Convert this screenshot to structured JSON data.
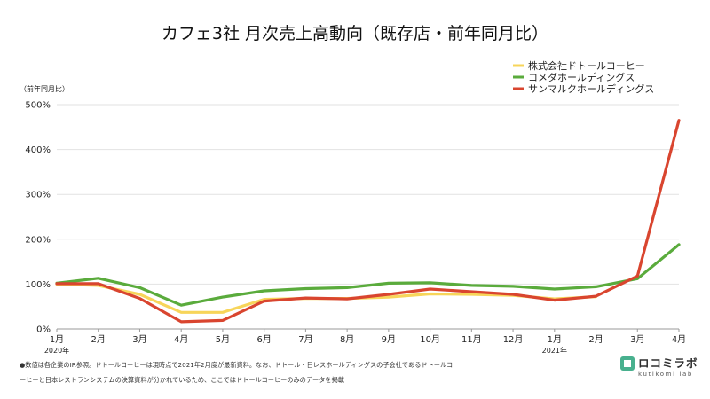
{
  "chart_data": {
    "type": "line",
    "title": "カフェ3社 月次売上高動向（既存店・前年同月比）",
    "ylabel": "（前年同月比）",
    "categories": [
      "1月",
      "2月",
      "3月",
      "4月",
      "5月",
      "6月",
      "7月",
      "8月",
      "9月",
      "10月",
      "11月",
      "12月",
      "1月",
      "2月",
      "3月",
      "4月"
    ],
    "year_labels": [
      {
        "index": 0,
        "label": "2020年"
      },
      {
        "index": 12,
        "label": "2021年"
      }
    ],
    "ylim": [
      0,
      500
    ],
    "yticks": [
      0,
      100,
      200,
      300,
      400,
      500
    ],
    "ytick_labels": [
      "0%",
      "100%",
      "200%",
      "300%",
      "400%",
      "500%"
    ],
    "grid": "horizontal",
    "legend_position": "top-right",
    "series": [
      {
        "name": "株式会社ドトールコーヒー",
        "color": "#f7d55a",
        "values": [
          100,
          97,
          77,
          37,
          37,
          66,
          68,
          68,
          71,
          78,
          77,
          75,
          67,
          72,
          null,
          null
        ]
      },
      {
        "name": "コメダホールディングス",
        "color": "#5aab3c",
        "values": [
          102,
          113,
          92,
          53,
          71,
          85,
          90,
          92,
          102,
          103,
          97,
          95,
          89,
          94,
          112,
          188
        ]
      },
      {
        "name": "サンマルクホールディングス",
        "color": "#d9452f",
        "values": [
          101,
          101,
          68,
          16,
          19,
          62,
          69,
          67,
          77,
          89,
          83,
          77,
          64,
          73,
          118,
          465
        ]
      }
    ]
  },
  "footnote": [
    "●数値は各企業のIR参照。ドトールコーヒーは現時点で2021年2月度が最新資料。なお、ドトール・日レスホールディングスの子会社であるドトールコ",
    "ーヒーと日本レストランシステムの決算資料が分かれているため、ここではドトールコーヒーのみのデータを掲載"
  ],
  "brand": {
    "name": "ロコミラボ",
    "sub": "kutikomi lab",
    "color": "#48b08e"
  }
}
